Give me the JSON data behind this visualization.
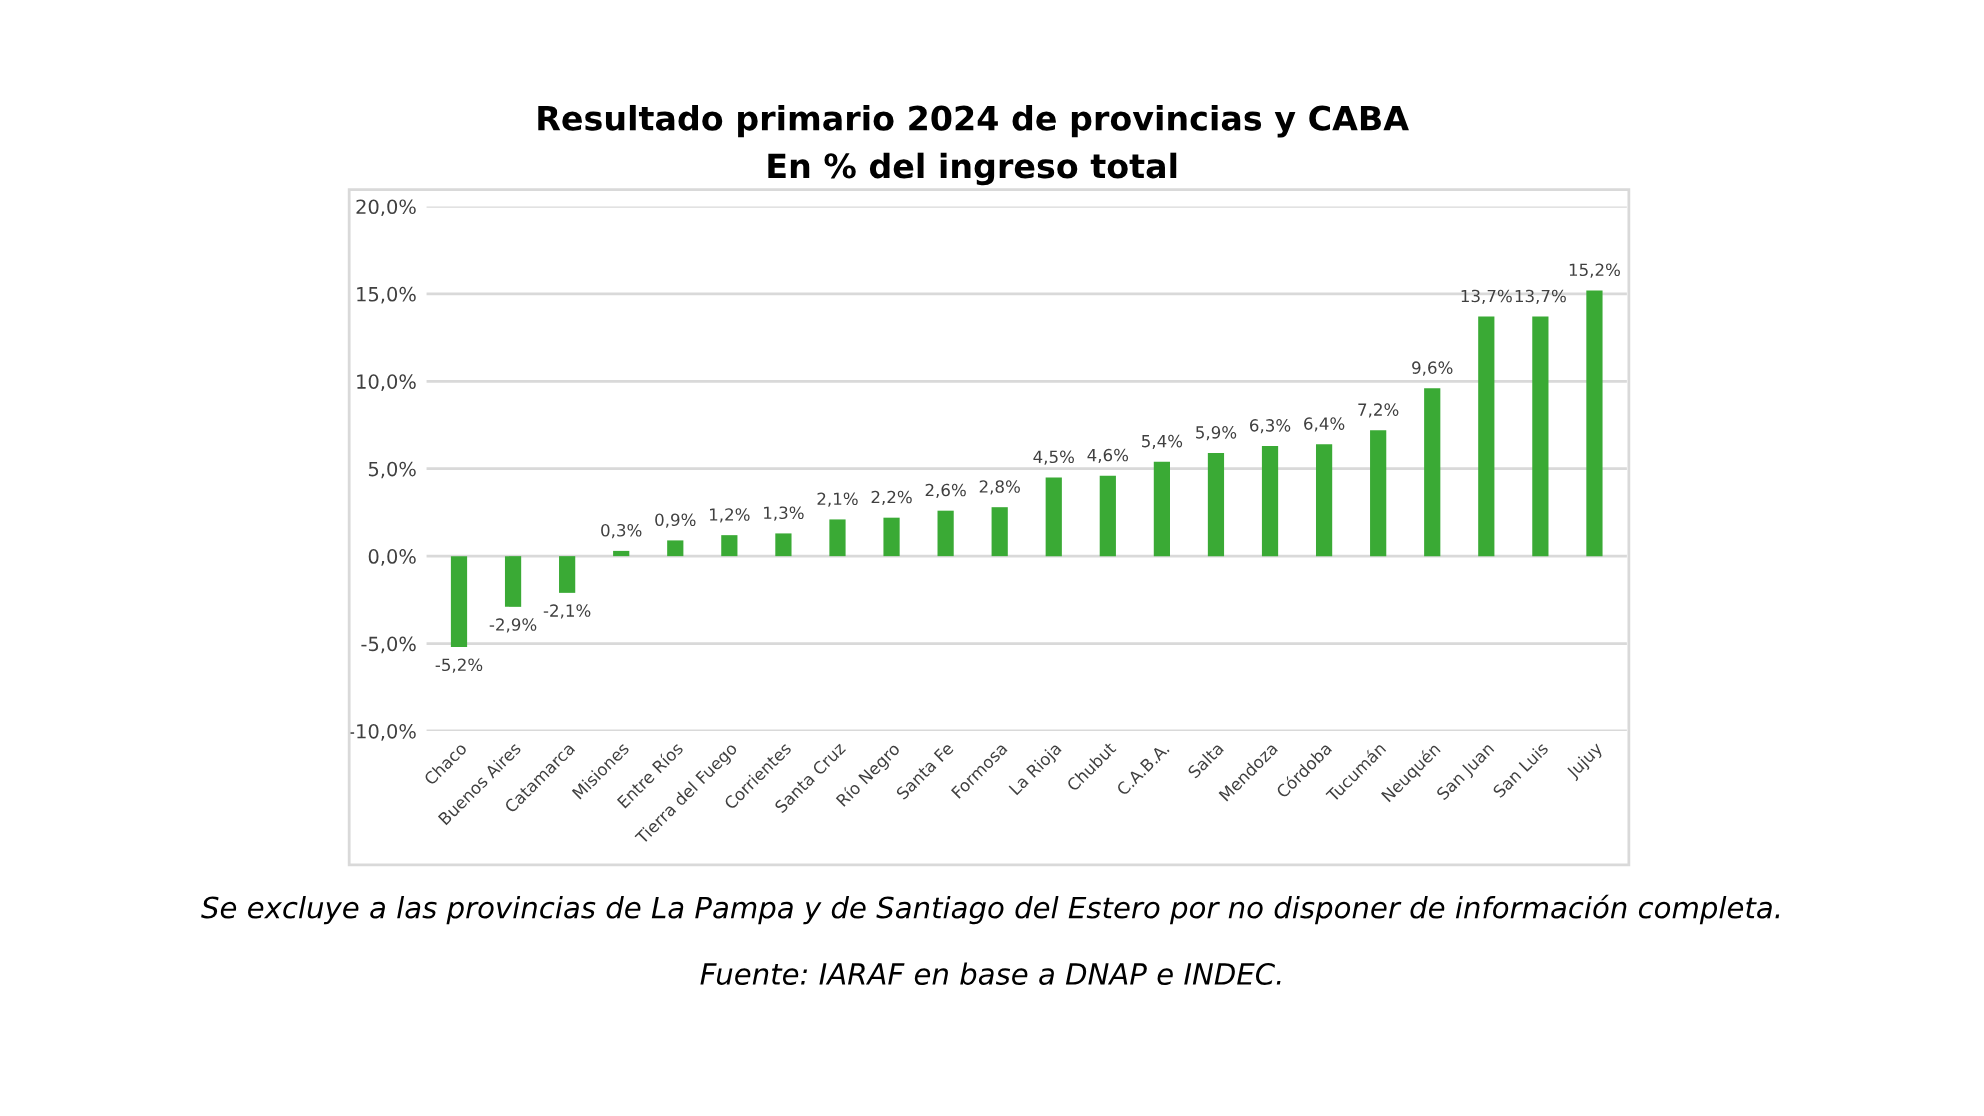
{
  "chart_data": {
    "type": "bar",
    "title": "Resultado primario 2024 de provincias y CABA\nEn % del ingreso total",
    "categories": [
      "Chaco",
      "Buenos Aires",
      "Catamarca",
      "Misiones",
      "Entre Ríos",
      "Tierra del Fuego",
      "Corrientes",
      "Santa Cruz",
      "Río Negro",
      "Santa Fe",
      "Formosa",
      "La Rioja",
      "Chubut",
      "C.A.B.A.",
      "Salta",
      "Mendoza",
      "Córdoba",
      "Tucumán",
      "Neuquén",
      "San Juan",
      "San Luis",
      "Jujuy"
    ],
    "values": [
      -5.2,
      -2.9,
      -2.1,
      0.3,
      0.9,
      1.2,
      1.3,
      2.1,
      2.2,
      2.6,
      2.8,
      4.5,
      4.6,
      5.4,
      5.9,
      6.3,
      6.4,
      7.2,
      9.6,
      13.7,
      13.7,
      15.2
    ],
    "value_labels": [
      "-5,2%",
      "-2,9%",
      "-2,1%",
      "0,3%",
      "0,9%",
      "1,2%",
      "1,3%",
      "2,1%",
      "2,2%",
      "2,6%",
      "2,8%",
      "4,5%",
      "4,6%",
      "5,4%",
      "5,9%",
      "6,3%",
      "6,4%",
      "7,2%",
      "9,6%",
      "13,7%",
      "13,7%",
      "15,2%"
    ],
    "color": "#3aaa35",
    "ylim": [
      -10,
      20
    ],
    "yticks": [
      {
        "value": -10,
        "label": "-10,0%"
      },
      {
        "value": -5,
        "label": "-5,0%"
      },
      {
        "value": 0,
        "label": "0,0%"
      },
      {
        "value": 5,
        "label": "5,0%"
      },
      {
        "value": 10,
        "label": "10,0%"
      },
      {
        "value": 15,
        "label": "15,0%"
      },
      {
        "value": 20,
        "label": "20,0%"
      }
    ],
    "grid": "y",
    "annotations": [
      "Se excluye a las provincias de La Pampa y de Santiago del Estero por no disponer de información completa.",
      "Fuente: IARAF en base a DNAP e INDEC."
    ]
  }
}
